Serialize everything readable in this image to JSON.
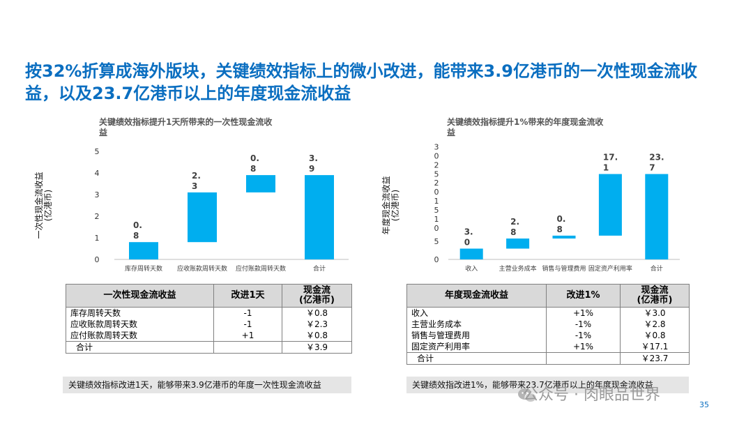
{
  "headline": "按32%折算成海外版块，关键绩效指标上的微小改进，能带来3.9亿港币的一次性现金流收益，以及23.7亿港币以上的年度现金流收益",
  "chart_data": [
    {
      "type": "bar",
      "subtype": "waterfall",
      "title_line1": "关键绩效指标提升1天所带来的一次性现金流收",
      "title_line2": "益",
      "ylabel_line1": "一次性现金流收益",
      "ylabel_line2": "(亿港币)",
      "ylim": [
        0,
        5
      ],
      "yticks": [
        "0",
        "1",
        "2",
        "3",
        "4",
        "5"
      ],
      "color": "#00aeef",
      "categories": [
        "库存周转天数",
        "应收账款周转天数",
        "应付账款周转天数",
        "合计"
      ],
      "values": [
        0.8,
        2.3,
        0.8,
        3.9
      ],
      "bar_base": [
        0,
        0.8,
        3.1,
        0
      ],
      "bar_top": [
        0.8,
        3.1,
        3.9,
        3.9
      ],
      "labels": [
        [
          "0.",
          "8"
        ],
        [
          "2.",
          "3"
        ],
        [
          "0.",
          "8"
        ],
        [
          "3.",
          "9"
        ]
      ]
    },
    {
      "type": "bar",
      "subtype": "waterfall",
      "title_line1": "关键绩效指标提升1%带来的年度现金流收",
      "title_line2": "益",
      "ylabel_line1": "年度现金流收益",
      "ylabel_line2": "(亿港币)",
      "ylim": [
        0,
        30
      ],
      "yticks": [
        [
          "0"
        ],
        [
          "5"
        ],
        [
          "1",
          "0"
        ],
        [
          "1",
          "5"
        ],
        [
          "2",
          "0"
        ],
        [
          "2",
          "5"
        ],
        [
          "3",
          "0"
        ]
      ],
      "color": "#00aeef",
      "categories": [
        "收入",
        "主营业务成本",
        "销售与管理费用",
        "固定资产利用率",
        "合计"
      ],
      "values": [
        3.0,
        2.8,
        0.8,
        17.1,
        23.7
      ],
      "bar_base": [
        0,
        3.0,
        5.8,
        6.6,
        0
      ],
      "bar_top": [
        3.0,
        5.8,
        6.6,
        23.7,
        23.7
      ],
      "labels": [
        [
          "3.",
          "0"
        ],
        [
          "2.",
          "8"
        ],
        [
          "0.",
          "8"
        ],
        [
          "17.",
          "1"
        ],
        [
          "23.",
          "7"
        ]
      ]
    }
  ],
  "table1": {
    "headers": [
      "一次性现金流收益",
      "改进1天",
      "现金流\n(亿港币)"
    ],
    "rows": [
      [
        "库存周转天数",
        "-1",
        "￥0.8"
      ],
      [
        "应收账款周转天数",
        "-1",
        "￥2.3"
      ],
      [
        "应付账款周转天数",
        "+1",
        "￥0.8"
      ]
    ],
    "total": [
      "合计",
      "",
      "￥3.9"
    ]
  },
  "table2": {
    "headers": [
      "年度现金流收益",
      "改进1%",
      "现金流\n(亿港币)"
    ],
    "rows": [
      [
        "收入",
        "+1%",
        "￥3.0"
      ],
      [
        "主营业务成本",
        "-1%",
        "￥2.8"
      ],
      [
        "销售与管理费用",
        "-1%",
        "￥0.8"
      ],
      [
        "固定资产利用率",
        "+1%",
        "￥17.1"
      ]
    ],
    "total": [
      "合计",
      "",
      "￥23.7"
    ]
  },
  "note1": "关键绩效指标改进1天，能够带来3.9亿港币的年度一次性现金流收益",
  "note2": "关键绩效指改进1%，能够带来23.7亿港币以上的年度现金流收益",
  "watermark": "公众号 · 肉眼品世界",
  "watermark_icon": "wechat-icon",
  "page_number": "35"
}
